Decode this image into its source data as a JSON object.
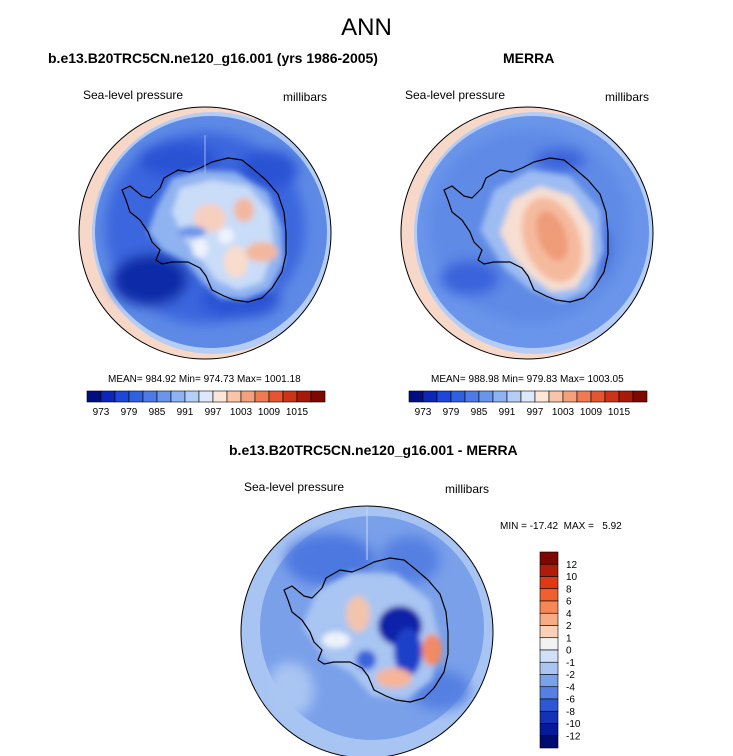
{
  "figure": {
    "title": "ANN"
  },
  "panels": {
    "model": {
      "title": "b.e13.B20TRC5CN.ne120_g16.001 (yrs 1986-2005)",
      "variable": "Sea-level pressure",
      "units": "millibars",
      "stats_text": "MEAN= 984.92  Min= 974.73  Max= 1001.18",
      "stats": {
        "mean": 984.92,
        "min": 974.73,
        "max": 1001.18
      }
    },
    "obs": {
      "title": "MERRA",
      "variable": "Sea-level pressure",
      "units": "millibars",
      "stats_text": "MEAN= 988.98  Min= 979.83  Max= 1003.05",
      "stats": {
        "mean": 988.98,
        "min": 979.83,
        "max": 1003.05
      }
    },
    "diff": {
      "title": "b.e13.B20TRC5CN.ne120_g16.001 - MERRA",
      "variable": "Sea-level pressure",
      "units": "millibars",
      "minmax_text": "MIN = -17.42  MAX =   5.92",
      "stats": {
        "min": -17.42,
        "max": 5.92
      }
    }
  },
  "colorbar_abs": {
    "labels": [
      "973",
      "979",
      "985",
      "991",
      "997",
      "1003",
      "1009",
      "1015"
    ],
    "colors": [
      "#000e80",
      "#0c26b8",
      "#1e46d8",
      "#3060e0",
      "#4d7ae6",
      "#6a95ec",
      "#8eb3f2",
      "#b4cff6",
      "#dde9fb",
      "#fde6d8",
      "#f9c4a8",
      "#f5a07c",
      "#f07a52",
      "#e55530",
      "#cc3318",
      "#a81a08",
      "#7d0800"
    ]
  },
  "colorbar_diff": {
    "labels": [
      "12",
      "10",
      "8",
      "6",
      "4",
      "2",
      "1",
      "0",
      "-1",
      "-2",
      "-4",
      "-6",
      "-8",
      "-10",
      "-12"
    ],
    "colors": [
      "#7d0800",
      "#b01c08",
      "#dd3a14",
      "#f0602c",
      "#f58856",
      "#f8ac86",
      "#fbd0b8",
      "#f2f2f2",
      "#cfe0f8",
      "#a9c5f2",
      "#7aa1ea",
      "#5580e2",
      "#2e58d6",
      "#1432b8",
      "#041a98",
      "#000a70"
    ]
  }
}
